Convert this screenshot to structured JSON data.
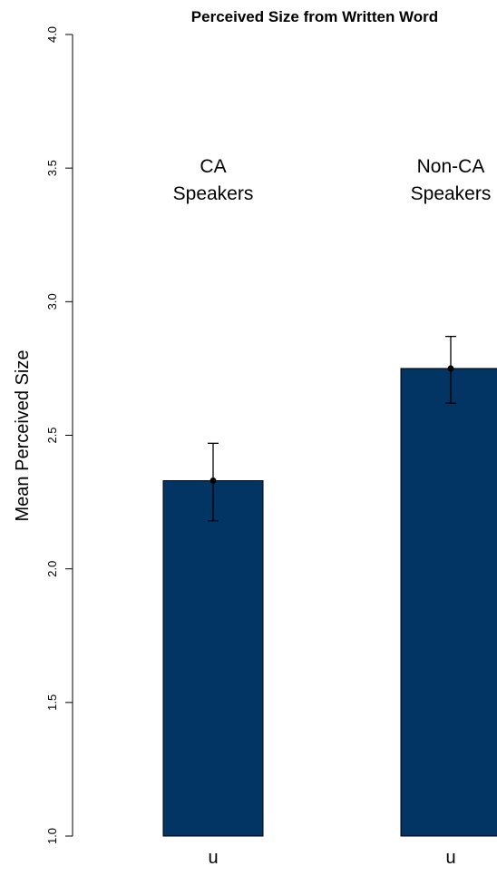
{
  "chart_data": {
    "type": "bar",
    "title": "Perceived Size from Written Word",
    "ylabel": "Mean Perceived Size",
    "xlabel": "",
    "ylim": [
      1.0,
      4.0
    ],
    "yticks": [
      "1.0",
      "1.5",
      "2.0",
      "2.5",
      "3.0",
      "3.5",
      "4.0"
    ],
    "grid": false,
    "bar_color": "#023563",
    "groups": [
      {
        "label_lines": [
          "CA",
          "Speakers"
        ],
        "category": "u",
        "value": 2.33,
        "error_low": 2.18,
        "error_high": 2.47
      },
      {
        "label_lines": [
          "Non-CA",
          "Speakers"
        ],
        "category": "u",
        "value": 2.75,
        "error_low": 2.62,
        "error_high": 2.87
      }
    ]
  }
}
